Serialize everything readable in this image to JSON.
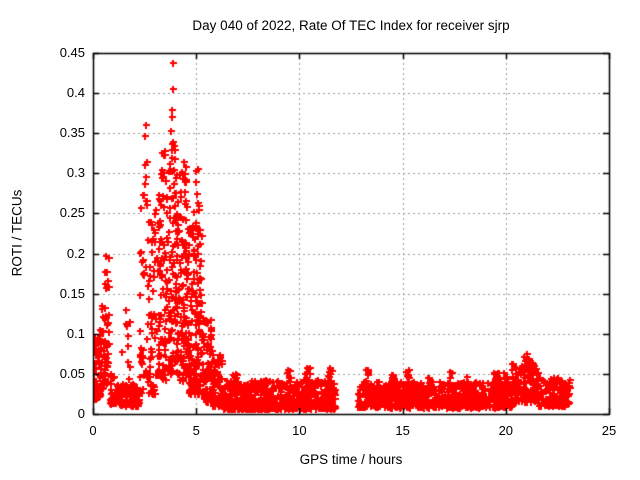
{
  "chart_data": {
    "type": "scatter",
    "title": "Day 040 of 2022, Rate Of TEC Index for receiver sjrp",
    "xlabel": "GPS time / hours",
    "ylabel": "ROTI / TECUs",
    "xlim": [
      0,
      25
    ],
    "ylim": [
      0,
      0.45
    ],
    "xticks": {
      "values": [
        0,
        5,
        10,
        15,
        20,
        25
      ],
      "labels": [
        "0",
        "5",
        "10",
        "15",
        "20",
        "25"
      ]
    },
    "yticks": {
      "values": [
        0,
        0.05,
        0.1,
        0.15,
        0.2,
        0.25,
        0.3,
        0.35,
        0.4,
        0.45
      ],
      "labels": [
        "0",
        "0.05",
        "0.1",
        "0.15",
        "0.2",
        "0.25",
        "0.3",
        "0.35",
        "0.4",
        "0.45"
      ]
    },
    "grid": {
      "show": true,
      "style": "dashed",
      "color": "#9c9c9c"
    },
    "frame_color": "#000000",
    "background": "#ffffff",
    "marker": "plus",
    "marker_color": "#ff0000",
    "data_gaps_hours": [
      [
        11.75,
        12.85
      ]
    ],
    "data_end_hour": 23.1,
    "peak_point": [
      3.87,
      0.437
    ],
    "outlier_points": [
      [
        3.87,
        0.437
      ],
      [
        3.9,
        0.405
      ],
      [
        0.62,
        0.197
      ],
      [
        21.05,
        0.075
      ]
    ],
    "density_segments_comment": "each segment: [x_start_hr, x_end_hr, n_points, y_min_TECU, y_max_TECU, skew_toward_min]",
    "density_segments": [
      [
        0.0,
        0.35,
        60,
        0.018,
        0.1,
        1.8
      ],
      [
        0.05,
        0.3,
        10,
        0.055,
        0.095,
        1.0
      ],
      [
        0.35,
        0.55,
        25,
        0.03,
        0.14,
        1.5
      ],
      [
        0.5,
        0.8,
        28,
        0.03,
        0.2,
        1.4
      ],
      [
        0.55,
        0.78,
        8,
        0.13,
        0.2,
        1.0
      ],
      [
        0.8,
        1.1,
        30,
        0.012,
        0.05,
        1.5
      ],
      [
        1.1,
        2.25,
        110,
        0.01,
        0.038,
        1.3
      ],
      [
        1.4,
        1.8,
        10,
        0.04,
        0.13,
        1.0
      ],
      [
        2.25,
        2.65,
        30,
        0.02,
        0.21,
        1.2
      ],
      [
        2.3,
        2.6,
        12,
        0.24,
        0.365,
        1.0
      ],
      [
        2.65,
        3.1,
        50,
        0.025,
        0.26,
        1.7
      ],
      [
        3.0,
        3.2,
        6,
        0.2,
        0.255,
        1.0
      ],
      [
        3.1,
        3.6,
        80,
        0.04,
        0.28,
        1.4
      ],
      [
        3.3,
        3.55,
        10,
        0.28,
        0.335,
        1.0
      ],
      [
        3.6,
        4.15,
        110,
        0.05,
        0.32,
        1.3
      ],
      [
        3.7,
        4.0,
        8,
        0.32,
        0.38,
        1.0
      ],
      [
        4.15,
        4.65,
        110,
        0.04,
        0.28,
        1.4
      ],
      [
        4.2,
        4.55,
        10,
        0.28,
        0.315,
        1.0
      ],
      [
        4.65,
        5.3,
        130,
        0.025,
        0.24,
        1.7
      ],
      [
        4.85,
        5.15,
        8,
        0.25,
        0.31,
        1.0
      ],
      [
        5.3,
        5.75,
        80,
        0.015,
        0.12,
        1.9
      ],
      [
        5.75,
        6.3,
        80,
        0.01,
        0.075,
        1.9
      ],
      [
        6.3,
        11.75,
        560,
        0.006,
        0.042,
        1.5
      ],
      [
        6.8,
        7.0,
        8,
        0.03,
        0.052,
        1.0
      ],
      [
        9.4,
        9.6,
        8,
        0.035,
        0.058,
        1.0
      ],
      [
        10.25,
        10.55,
        10,
        0.035,
        0.06,
        1.0
      ],
      [
        11.35,
        11.65,
        12,
        0.035,
        0.058,
        1.0
      ],
      [
        12.85,
        20.3,
        760,
        0.008,
        0.04,
        1.5
      ],
      [
        13.2,
        13.45,
        8,
        0.03,
        0.055,
        1.0
      ],
      [
        14.4,
        14.6,
        8,
        0.03,
        0.052,
        1.0
      ],
      [
        15.05,
        15.35,
        10,
        0.032,
        0.055,
        1.0
      ],
      [
        16.2,
        16.45,
        8,
        0.03,
        0.05,
        1.0
      ],
      [
        17.2,
        17.45,
        8,
        0.03,
        0.052,
        1.0
      ],
      [
        18.1,
        18.35,
        6,
        0.03,
        0.048,
        1.0
      ],
      [
        19.4,
        20.1,
        40,
        0.02,
        0.052,
        1.3
      ],
      [
        20.3,
        21.6,
        140,
        0.015,
        0.062,
        1.5
      ],
      [
        20.85,
        21.35,
        14,
        0.05,
        0.072,
        1.0
      ],
      [
        21.6,
        23.1,
        150,
        0.01,
        0.045,
        1.5
      ]
    ],
    "seed": 20220409
  }
}
